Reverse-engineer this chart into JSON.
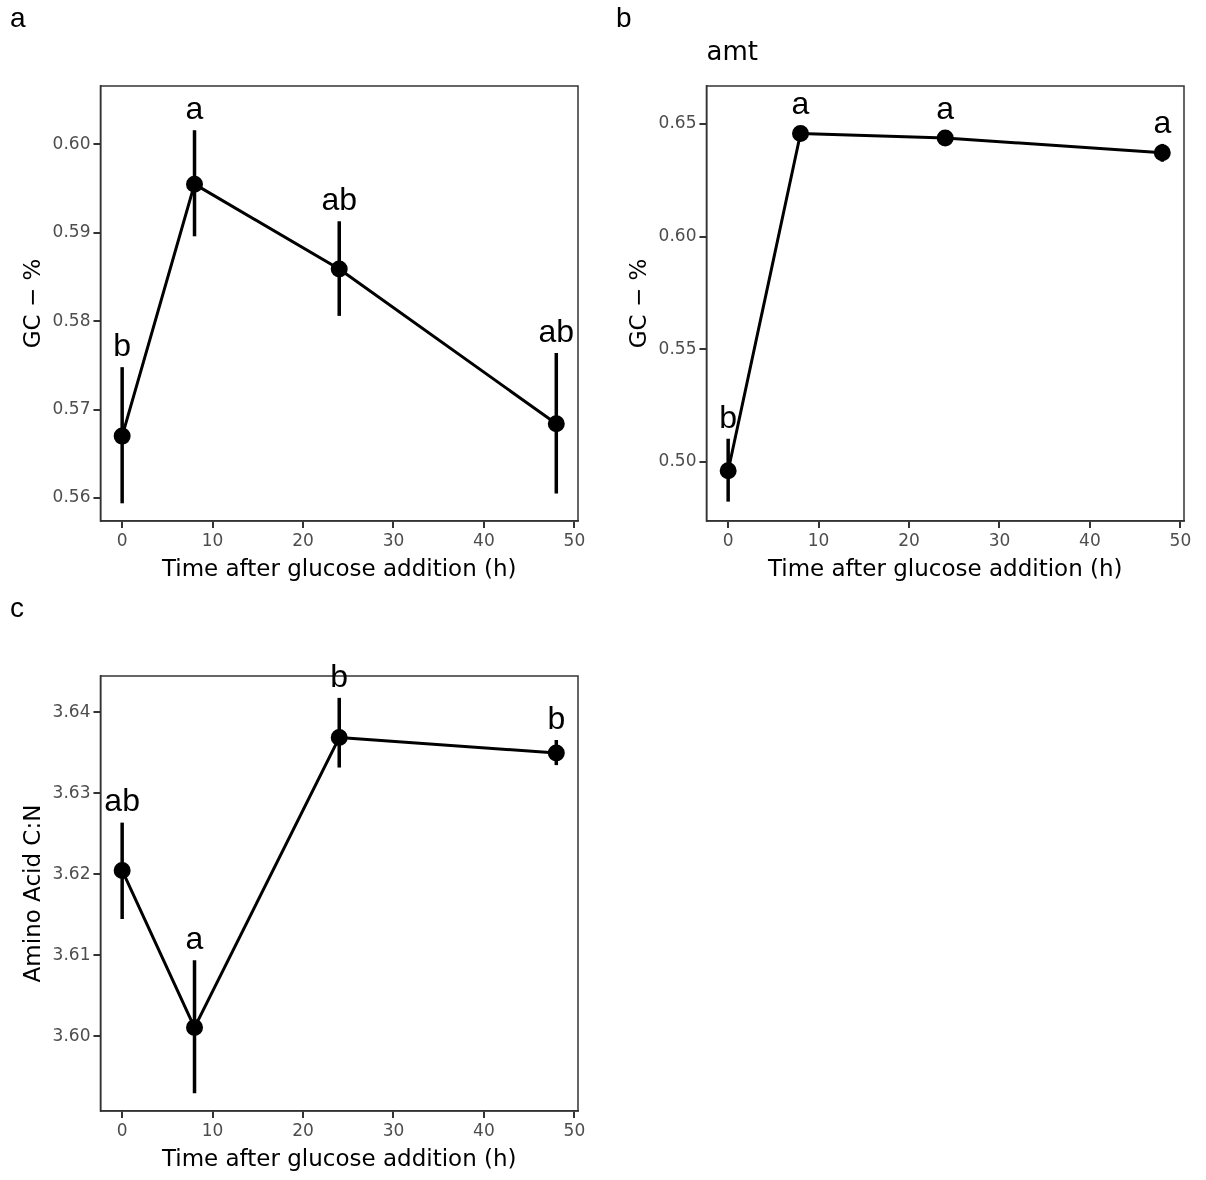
{
  "chart_data": [
    {
      "type": "line",
      "xlabel": "Time after glucose addition (h)",
      "ylabel": "GC − %",
      "x": [
        0,
        8,
        24,
        48
      ],
      "xlim": [
        -2.4,
        50.4
      ],
      "xticks": [
        0,
        10,
        20,
        30,
        40,
        50
      ],
      "ylim": [
        0.5574,
        0.6066
      ],
      "yticks": [
        {
          "value": 0.56,
          "label": "0.56"
        },
        {
          "value": 0.57,
          "label": "0.57"
        },
        {
          "value": 0.58,
          "label": "0.58"
        },
        {
          "value": 0.59,
          "label": "0.59"
        },
        {
          "value": 0.6,
          "label": "0.60"
        }
      ],
      "grid": false,
      "legend": false,
      "marker": "circle",
      "line_style": "solid",
      "series": [
        {
          "color": "#000000",
          "values": [
            0.567,
            0.5955,
            0.5859,
            0.5684
          ],
          "errors": [
            [
              0.5594,
              0.5748
            ],
            [
              0.5896,
              0.6016
            ],
            [
              0.5806,
              0.5913
            ],
            [
              0.5605,
              0.5764
            ]
          ]
        }
      ],
      "annotations": [
        "a",
        "b",
        "a",
        "ab",
        "ab"
      ]
    },
    {
      "type": "line",
      "title": "amt",
      "xlabel": "Time after glucose addition (h)",
      "ylabel": "GC − %",
      "x": [
        0,
        8,
        24,
        48
      ],
      "xlim": [
        -2.4,
        50.4
      ],
      "xticks": [
        0,
        10,
        20,
        30,
        40,
        50
      ],
      "ylim": [
        0.4738,
        0.6668
      ],
      "yticks": [
        {
          "value": 0.5,
          "label": "0.50"
        },
        {
          "value": 0.55,
          "label": "0.55"
        },
        {
          "value": 0.6,
          "label": "0.60"
        },
        {
          "value": 0.65,
          "label": "0.65"
        }
      ],
      "grid": false,
      "legend": false,
      "marker": "circle",
      "line_style": "solid",
      "series": [
        {
          "color": "#000000",
          "values": [
            0.4961,
            0.6457,
            0.6437,
            0.6372
          ],
          "errors": [
            [
              0.4824,
              0.5103
            ],
            null,
            null,
            [
              0.6332,
              0.6411
            ]
          ]
        }
      ],
      "annotations": [
        "b",
        "b",
        "a",
        "a",
        "a"
      ]
    },
    {
      "type": "line",
      "xlabel": "Time after glucose addition (h)",
      "ylabel": "Amino Acid C:N",
      "x": [
        0,
        8,
        24,
        48
      ],
      "xlim": [
        -2.4,
        50.4
      ],
      "xticks": [
        0,
        10,
        20,
        30,
        40,
        50
      ],
      "ylim": [
        3.5908,
        3.6445
      ],
      "yticks": [
        {
          "value": 3.6,
          "label": "3.60"
        },
        {
          "value": 3.61,
          "label": "3.61"
        },
        {
          "value": 3.62,
          "label": "3.62"
        },
        {
          "value": 3.63,
          "label": "3.63"
        },
        {
          "value": 3.64,
          "label": "3.64"
        }
      ],
      "grid": false,
      "legend": false,
      "marker": "circle",
      "line_style": "solid",
      "series": [
        {
          "color": "#000000",
          "values": [
            3.6205,
            3.6011,
            3.6369,
            3.635
          ],
          "errors": [
            [
              3.6145,
              3.6264
            ],
            [
              3.593,
              3.6094
            ],
            [
              3.6332,
              3.6418
            ],
            [
              3.6335,
              3.6366
            ]
          ]
        }
      ],
      "annotations": [
        "c",
        "ab",
        "a",
        "b",
        "b"
      ]
    }
  ]
}
